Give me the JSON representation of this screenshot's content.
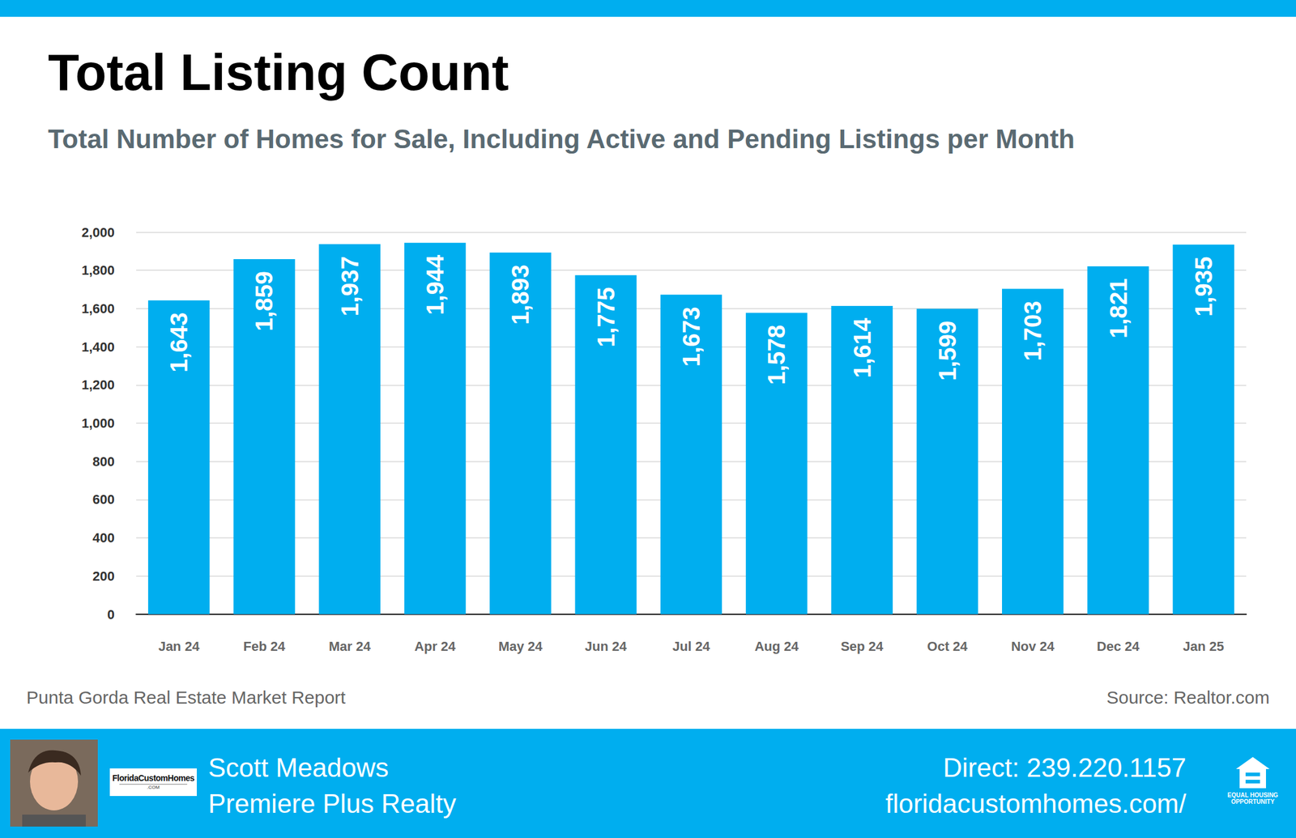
{
  "chart_data": {
    "type": "bar",
    "title": "Total Listing Count",
    "subtitle": "Total Number of Homes for Sale, Including Active and Pending Listings per Month",
    "categories": [
      "Jan 24",
      "Feb 24",
      "Mar 24",
      "Apr 24",
      "May 24",
      "Jun 24",
      "Jul 24",
      "Aug 24",
      "Sep 24",
      "Oct 24",
      "Nov 24",
      "Dec 24",
      "Jan 25"
    ],
    "values": [
      1643,
      1859,
      1937,
      1944,
      1893,
      1775,
      1673,
      1578,
      1614,
      1599,
      1703,
      1821,
      1935
    ],
    "value_labels": [
      "1,643",
      "1,859",
      "1,937",
      "1,944",
      "1,893",
      "1,775",
      "1,673",
      "1,578",
      "1,614",
      "1,599",
      "1,703",
      "1,821",
      "1,935"
    ],
    "color": "#00aeef",
    "ylim": [
      0,
      2000
    ],
    "yticks": [
      0,
      200,
      400,
      600,
      800,
      {
        "value": 1000,
        "label": "1,000"
      },
      {
        "value": 1200,
        "label": "1,200"
      },
      {
        "value": 1400,
        "label": "1,400"
      },
      {
        "value": 1600,
        "label": "1,600"
      },
      {
        "value": 1800,
        "label": "1,800"
      },
      {
        "value": 2000,
        "label": "2,000"
      }
    ],
    "grid": true,
    "data_labels": true
  },
  "page": {
    "report": "Punta Gorda Real Estate Market Report",
    "source": "Source: Realtor.com",
    "agent_name": "Scott Meadows",
    "agency": "Premiere Plus Realty",
    "phone": "Direct: 239.220.1157",
    "website": "floridacustomhomes.com/",
    "logo_text": "FloridaCustomHomes",
    "logo_subtext": ".COM",
    "badge_text": "EQUAL HOUSING OPPORTUNITY"
  }
}
